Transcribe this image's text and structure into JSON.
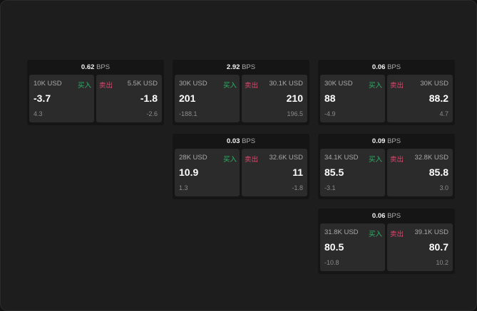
{
  "colors": {
    "buy": "#2fb36a",
    "sell": "#e0456d"
  },
  "labels": {
    "buy": "买入",
    "sell": "卖出",
    "unit": "BPS"
  },
  "cards": [
    {
      "spread": "0.62",
      "buy": {
        "size": "10K USD",
        "price": "-3.7",
        "change": "4.3"
      },
      "sell": {
        "size": "5.5K USD",
        "price": "-1.8",
        "change": "-2.6"
      }
    },
    {
      "spread": "2.92",
      "buy": {
        "size": "30K USD",
        "price": "201",
        "change": "-188.1"
      },
      "sell": {
        "size": "30.1K USD",
        "price": "210",
        "change": "196.5"
      }
    },
    {
      "spread": "0.06",
      "buy": {
        "size": "30K USD",
        "price": "88",
        "change": "-4.9"
      },
      "sell": {
        "size": "30K USD",
        "price": "88.2",
        "change": "4.7"
      }
    },
    {
      "spread": "0.03",
      "buy": {
        "size": "28K USD",
        "price": "10.9",
        "change": "1.3"
      },
      "sell": {
        "size": "32.6K USD",
        "price": "11",
        "change": "-1.8"
      }
    },
    {
      "spread": "0.09",
      "buy": {
        "size": "34.1K USD",
        "price": "85.5",
        "change": "-3.1"
      },
      "sell": {
        "size": "32.8K USD",
        "price": "85.8",
        "change": "3.0"
      }
    },
    {
      "spread": "0.06",
      "buy": {
        "size": "31.8K USD",
        "price": "80.5",
        "change": "-10.8"
      },
      "sell": {
        "size": "39.1K USD",
        "price": "80.7",
        "change": "10.2"
      }
    }
  ]
}
